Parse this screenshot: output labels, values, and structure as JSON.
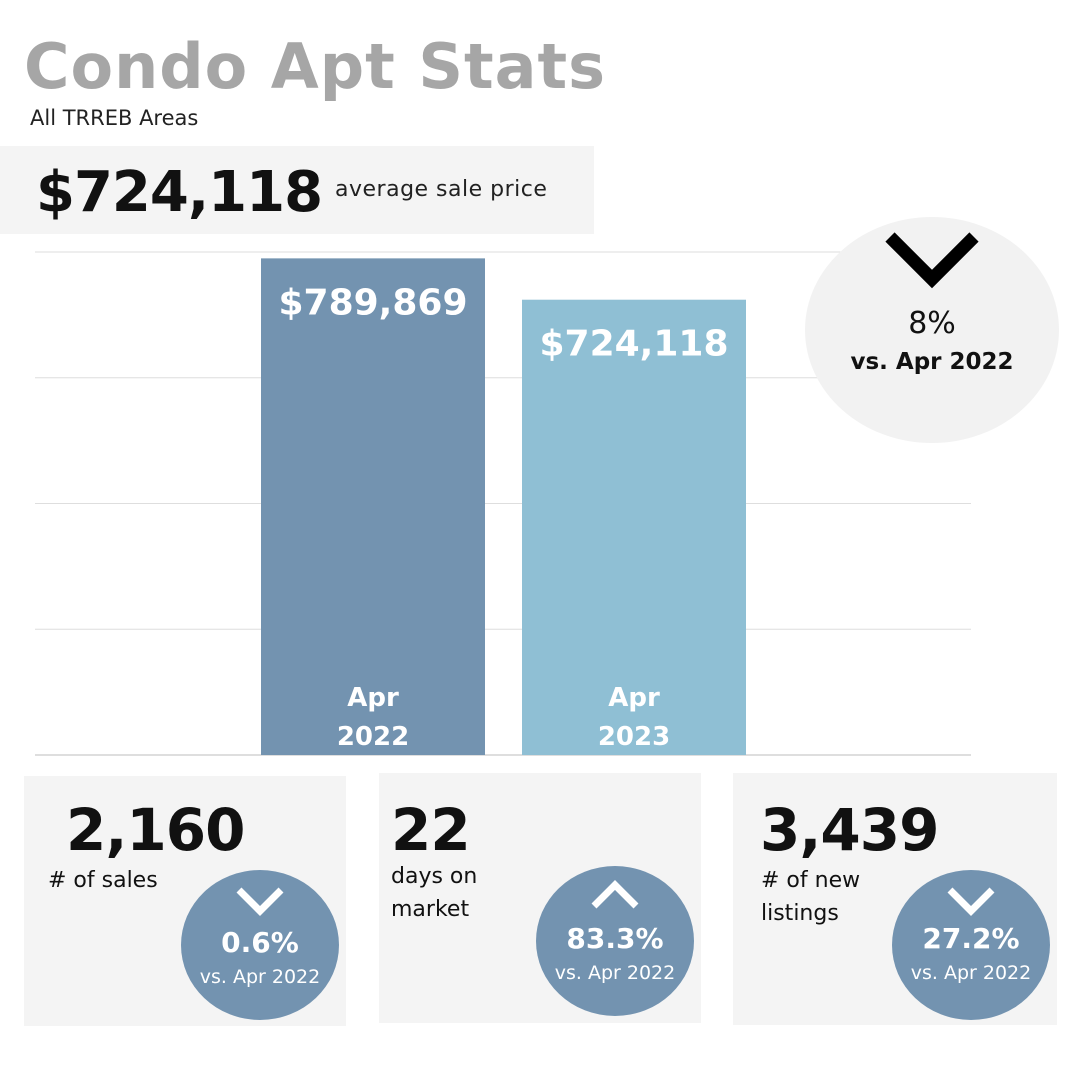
{
  "header": {
    "title": "Condo Apt Stats",
    "subtitle": "All TRREB Areas"
  },
  "summary": {
    "value": "$724,118",
    "label": "average sale price"
  },
  "change_badge": {
    "direction": "down",
    "percent": "8%",
    "comparison": "vs. Apr 2022",
    "icon": "chevron-down-icon"
  },
  "chart_data": {
    "type": "bar",
    "categories": [
      "Apr 2022",
      "Apr 2023"
    ],
    "category_lines": [
      [
        "Apr",
        "2022"
      ],
      [
        "Apr",
        "2023"
      ]
    ],
    "values": [
      789869,
      724118
    ],
    "value_labels": [
      "$789,869",
      "$724,118"
    ],
    "colors": [
      "#7393b0",
      "#8fbfd4"
    ],
    "ylim": [
      0,
      800000
    ],
    "grid": true,
    "title": "",
    "xlabel": "",
    "ylabel": ""
  },
  "stats": [
    {
      "value": "2,160",
      "label_lines": [
        "# of sales"
      ],
      "direction": "down",
      "percent": "0.6%",
      "comparison": "vs. Apr 2022",
      "icon": "chevron-down-icon"
    },
    {
      "value": "22",
      "label_lines": [
        "days on",
        "market"
      ],
      "direction": "up",
      "percent": "83.3%",
      "comparison": "vs. Apr 2022",
      "icon": "chevron-up-icon"
    },
    {
      "value": "3,439",
      "label_lines": [
        "# of new",
        "listings"
      ],
      "direction": "down",
      "percent": "27.2%",
      "comparison": "vs. Apr 2022",
      "icon": "chevron-down-icon"
    }
  ],
  "colors": {
    "title_gray": "#a6a6a6",
    "box_bg": "#f4f4f4",
    "circle_bg": "#f2f2f2",
    "accent_dark": "#7393b0",
    "accent_light": "#8fbfd4"
  }
}
